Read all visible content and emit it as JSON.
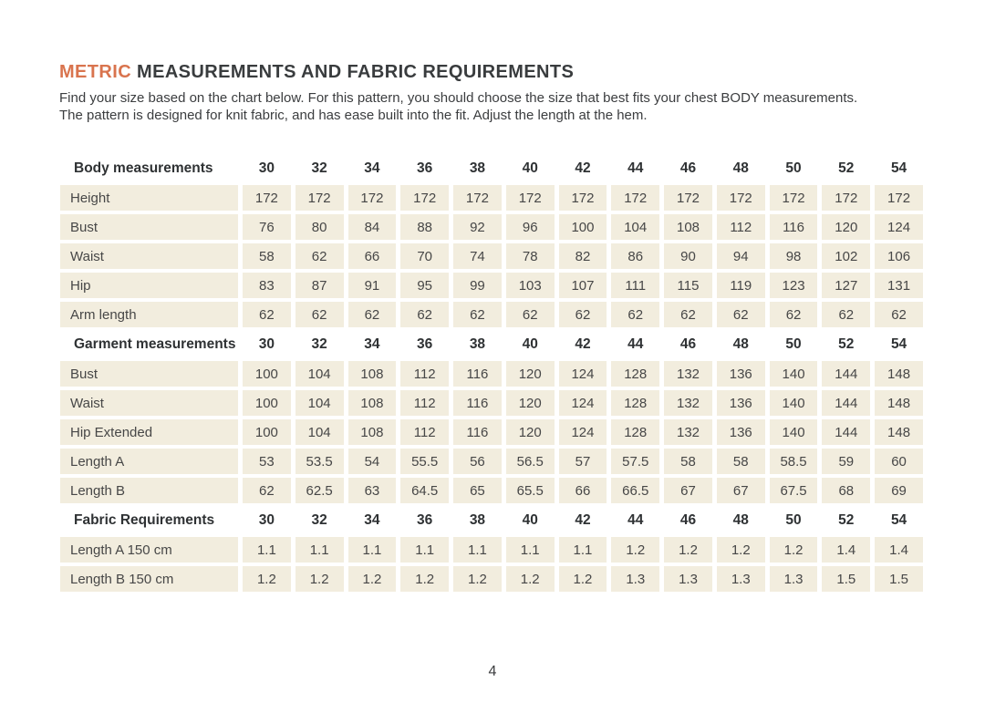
{
  "page": {
    "title_accent": "METRIC",
    "title_rest": " MEASUREMENTS AND FABRIC REQUIREMENTS",
    "intro_line1": "Find your size based on the chart below. For this pattern, you should choose the size that best fits your chest BODY measurements.",
    "intro_line2": "The pattern is designed for knit fabric, and has ease built into the fit.  Adjust the length at the hem.",
    "page_number": "4"
  },
  "colors": {
    "accent_orange": "#d9744e",
    "heading_text": "#393c3e",
    "body_text": "#3b3d3f",
    "cell_background": "#f2edde",
    "cell_text": "#474747"
  },
  "table": {
    "sizes": [
      "30",
      "32",
      "34",
      "36",
      "38",
      "40",
      "42",
      "44",
      "46",
      "48",
      "50",
      "52",
      "54"
    ],
    "rows": [
      {
        "type": "header",
        "label": "Body measurements",
        "values": [
          "30",
          "32",
          "34",
          "36",
          "38",
          "40",
          "42",
          "44",
          "46",
          "48",
          "50",
          "52",
          "54"
        ]
      },
      {
        "type": "data",
        "label": "Height",
        "values": [
          "172",
          "172",
          "172",
          "172",
          "172",
          "172",
          "172",
          "172",
          "172",
          "172",
          "172",
          "172",
          "172"
        ]
      },
      {
        "type": "data",
        "label": "Bust",
        "values": [
          "76",
          "80",
          "84",
          "88",
          "92",
          "96",
          "100",
          "104",
          "108",
          "112",
          "116",
          "120",
          "124"
        ]
      },
      {
        "type": "data",
        "label": "Waist",
        "values": [
          "58",
          "62",
          "66",
          "70",
          "74",
          "78",
          "82",
          "86",
          "90",
          "94",
          "98",
          "102",
          "106"
        ]
      },
      {
        "type": "data",
        "label": "Hip",
        "values": [
          "83",
          "87",
          "91",
          "95",
          "99",
          "103",
          "107",
          "111",
          "115",
          "119",
          "123",
          "127",
          "131"
        ]
      },
      {
        "type": "data",
        "label": "Arm length",
        "values": [
          "62",
          "62",
          "62",
          "62",
          "62",
          "62",
          "62",
          "62",
          "62",
          "62",
          "62",
          "62",
          "62"
        ]
      },
      {
        "type": "header",
        "label": "Garment measurements",
        "values": [
          "30",
          "32",
          "34",
          "36",
          "38",
          "40",
          "42",
          "44",
          "46",
          "48",
          "50",
          "52",
          "54"
        ]
      },
      {
        "type": "data",
        "label": "Bust",
        "values": [
          "100",
          "104",
          "108",
          "112",
          "116",
          "120",
          "124",
          "128",
          "132",
          "136",
          "140",
          "144",
          "148"
        ]
      },
      {
        "type": "data",
        "label": "Waist",
        "values": [
          "100",
          "104",
          "108",
          "112",
          "116",
          "120",
          "124",
          "128",
          "132",
          "136",
          "140",
          "144",
          "148"
        ]
      },
      {
        "type": "data",
        "label": "Hip Extended",
        "values": [
          "100",
          "104",
          "108",
          "112",
          "116",
          "120",
          "124",
          "128",
          "132",
          "136",
          "140",
          "144",
          "148"
        ]
      },
      {
        "type": "data",
        "label": "Length A",
        "values": [
          "53",
          "53.5",
          "54",
          "55.5",
          "56",
          "56.5",
          "57",
          "57.5",
          "58",
          "58",
          "58.5",
          "59",
          "60"
        ]
      },
      {
        "type": "data",
        "label": "Length B",
        "values": [
          "62",
          "62.5",
          "63",
          "64.5",
          "65",
          "65.5",
          "66",
          "66.5",
          "67",
          "67",
          "67.5",
          "68",
          "69"
        ]
      },
      {
        "type": "header",
        "label": "Fabric Requirements",
        "values": [
          "30",
          "32",
          "34",
          "36",
          "38",
          "40",
          "42",
          "44",
          "46",
          "48",
          "50",
          "52",
          "54"
        ]
      },
      {
        "type": "data",
        "label": "Length A 150 cm",
        "values": [
          "1.1",
          "1.1",
          "1.1",
          "1.1",
          "1.1",
          "1.1",
          "1.1",
          "1.2",
          "1.2",
          "1.2",
          "1.2",
          "1.4",
          "1.4"
        ]
      },
      {
        "type": "data",
        "label": "Length B 150 cm",
        "values": [
          "1.2",
          "1.2",
          "1.2",
          "1.2",
          "1.2",
          "1.2",
          "1.2",
          "1.3",
          "1.3",
          "1.3",
          "1.3",
          "1.5",
          "1.5"
        ]
      }
    ]
  }
}
